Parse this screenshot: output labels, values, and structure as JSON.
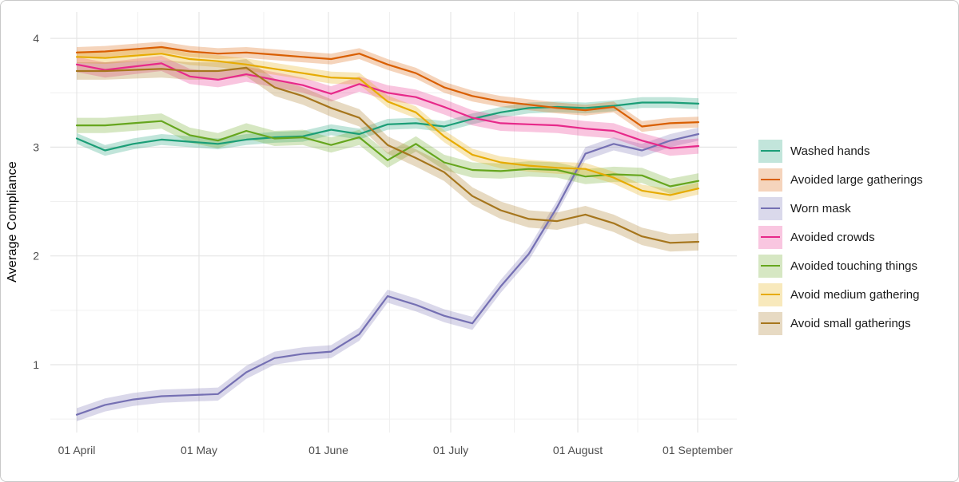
{
  "figure": {
    "background": "#ffffff",
    "border_color": "#c9c9c9",
    "tick_text_color": "#4d4d4d",
    "grid_major_color": "#e5e5e5",
    "grid_minor_color": "#f0f0f0"
  },
  "chart_data": {
    "type": "line",
    "title": "",
    "xlabel": "",
    "ylabel": "Average Compliance",
    "grid": "major+minor",
    "legend_position": "right",
    "x_tick_labels": [
      "01 April",
      "01 May",
      "01 June",
      "01 July",
      "01 August",
      "01 September"
    ],
    "y_tick_labels": [
      "1",
      "2",
      "3",
      "4"
    ],
    "y_ticks": [
      1,
      2,
      3,
      4
    ],
    "ylim": [
      0.38,
      4.25
    ],
    "x_weekly_dates": [
      "01 Apr",
      "08 Apr",
      "15 Apr",
      "22 Apr",
      "29 Apr",
      "06 May",
      "13 May",
      "20 May",
      "27 May",
      "03 Jun",
      "10 Jun",
      "17 Jun",
      "24 Jun",
      "01 Jul",
      "08 Jul",
      "15 Jul",
      "22 Jul",
      "29 Jul",
      "05 Aug",
      "12 Aug",
      "19 Aug",
      "26 Aug",
      "02 Sep"
    ],
    "band_opacity": 0.27,
    "series": [
      {
        "name": "Washed hands",
        "color": "#1B9E77",
        "band_halfwidth": 0.05,
        "values": [
          3.08,
          2.97,
          3.03,
          3.07,
          3.05,
          3.03,
          3.07,
          3.09,
          3.1,
          3.16,
          3.12,
          3.21,
          3.22,
          3.19,
          3.26,
          3.32,
          3.36,
          3.37,
          3.36,
          3.38,
          3.41,
          3.41,
          3.4
        ]
      },
      {
        "name": "Avoided large gatherings",
        "color": "#D95F02",
        "band_halfwidth": 0.05,
        "values": [
          3.87,
          3.88,
          3.9,
          3.92,
          3.88,
          3.86,
          3.87,
          3.85,
          3.83,
          3.81,
          3.86,
          3.76,
          3.68,
          3.55,
          3.47,
          3.42,
          3.39,
          3.36,
          3.34,
          3.37,
          3.19,
          3.22,
          3.23
        ]
      },
      {
        "name": "Worn mask",
        "color": "#7570B3",
        "band_halfwidth": 0.06,
        "values": [
          0.54,
          0.63,
          0.68,
          0.71,
          0.72,
          0.73,
          0.93,
          1.06,
          1.1,
          1.12,
          1.28,
          1.63,
          1.55,
          1.45,
          1.38,
          1.72,
          2.02,
          2.45,
          2.94,
          3.03,
          2.97,
          3.06,
          3.12
        ]
      },
      {
        "name": "Avoided crowds",
        "color": "#E7298A",
        "band_halfwidth": 0.07,
        "values": [
          3.76,
          3.71,
          3.74,
          3.77,
          3.65,
          3.62,
          3.67,
          3.62,
          3.57,
          3.49,
          3.58,
          3.5,
          3.46,
          3.37,
          3.27,
          3.22,
          3.21,
          3.2,
          3.17,
          3.15,
          3.06,
          2.99,
          3.01
        ]
      },
      {
        "name": "Avoided touching things",
        "color": "#66A61E",
        "band_halfwidth": 0.07,
        "values": [
          3.2,
          3.2,
          3.22,
          3.24,
          3.11,
          3.06,
          3.15,
          3.08,
          3.09,
          3.02,
          3.09,
          2.88,
          3.03,
          2.86,
          2.79,
          2.78,
          2.8,
          2.79,
          2.73,
          2.75,
          2.74,
          2.64,
          2.69
        ]
      },
      {
        "name": "Avoid medium gathering",
        "color": "#E6AB02",
        "band_halfwidth": 0.055,
        "values": [
          3.83,
          3.82,
          3.84,
          3.86,
          3.81,
          3.79,
          3.76,
          3.72,
          3.68,
          3.64,
          3.63,
          3.42,
          3.32,
          3.1,
          2.93,
          2.86,
          2.83,
          2.81,
          2.8,
          2.72,
          2.6,
          2.56,
          2.62
        ]
      },
      {
        "name": "Avoid small gatherings",
        "color": "#A6761D",
        "band_halfwidth": 0.08,
        "values": [
          3.7,
          3.7,
          3.71,
          3.72,
          3.7,
          3.7,
          3.73,
          3.55,
          3.47,
          3.36,
          3.27,
          3.02,
          2.9,
          2.77,
          2.55,
          2.42,
          2.34,
          2.32,
          2.38,
          2.3,
          2.18,
          2.12,
          2.13
        ]
      }
    ]
  }
}
